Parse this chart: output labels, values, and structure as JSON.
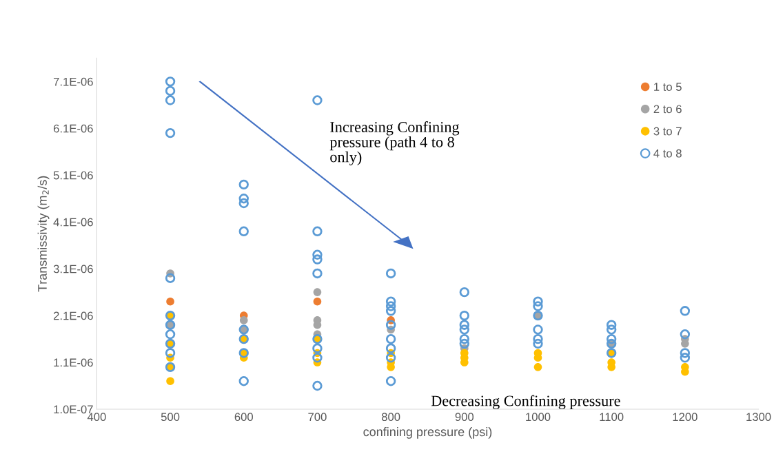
{
  "chart_data": {
    "type": "scatter",
    "xlabel": "confining pressure (psi)",
    "ylabel": "Transmissivity (m$_{2}$/s)",
    "marker": "circle",
    "legend": "top right",
    "grid": false,
    "xlim": [
      400,
      1300
    ],
    "xticks": [
      400,
      500,
      600,
      700,
      800,
      900,
      1000,
      1100,
      1200,
      1300
    ],
    "ylim": [
      1e-07,
      7.6e-06
    ],
    "yticks": [
      {
        "value": 1e-07,
        "label": "1.0E-07"
      },
      {
        "value": 1.1e-06,
        "label": "1.1E-06"
      },
      {
        "value": 2.1e-06,
        "label": "2.1E-06"
      },
      {
        "value": 3.1e-06,
        "label": "3.1E-06"
      },
      {
        "value": 4.1e-06,
        "label": "4.1E-06"
      },
      {
        "value": 5.1e-06,
        "label": "5.1E-06"
      },
      {
        "value": 6.1e-06,
        "label": "6.1E-06"
      },
      {
        "value": 7.1e-06,
        "label": "7.1E-06"
      }
    ],
    "series": [
      {
        "name": "1 to 5",
        "color": "#ed7d31",
        "x": [
          500,
          600,
          700,
          800
        ],
        "values": [
          2.4e-06,
          2.1e-06,
          2.4e-06,
          2e-06
        ]
      },
      {
        "name": "2 to 6",
        "color": "#a5a5a5",
        "x": [
          500,
          500,
          600,
          600,
          700,
          700,
          700,
          700,
          800,
          900,
          1000,
          1100,
          1200,
          1200
        ],
        "values": [
          3e-06,
          1.9e-06,
          2e-06,
          1.8e-06,
          2.6e-06,
          2e-06,
          1.9e-06,
          1.7e-06,
          1.8e-06,
          1.4e-06,
          2.1e-06,
          1.5e-06,
          1.6e-06,
          1.5e-06
        ]
      },
      {
        "name": "3 to 7",
        "color": "#ffc000",
        "x": [
          500,
          500,
          500,
          500,
          500,
          600,
          600,
          600,
          700,
          700,
          700,
          800,
          800,
          800,
          900,
          900,
          900,
          1000,
          1000,
          1000,
          1100,
          1100,
          1100,
          1200,
          1200
        ],
        "values": [
          7e-07,
          1e-06,
          1.2e-06,
          1.5e-06,
          2.1e-06,
          1.6e-06,
          1.3e-06,
          1.2e-06,
          1.1e-06,
          1.3e-06,
          1.6e-06,
          1e-06,
          1.1e-06,
          1.3e-06,
          1.3e-06,
          1.2e-06,
          1.1e-06,
          1.3e-06,
          1.2e-06,
          1e-06,
          1.3e-06,
          1.1e-06,
          1e-06,
          1e-06,
          9e-07
        ]
      },
      {
        "name": "4 to 8",
        "color": "#5b9bd5",
        "x": [
          500,
          500,
          500,
          500,
          500,
          500,
          500,
          500,
          500,
          500,
          500,
          600,
          600,
          600,
          600,
          600,
          600,
          600,
          600,
          700,
          700,
          700,
          700,
          700,
          700,
          700,
          700,
          700,
          800,
          800,
          800,
          800,
          800,
          800,
          800,
          800,
          800,
          900,
          900,
          900,
          900,
          900,
          900,
          1000,
          1000,
          1000,
          1000,
          1000,
          1000,
          1100,
          1100,
          1100,
          1100,
          1100,
          1200,
          1200,
          1200,
          1200
        ],
        "values": [
          7.1e-06,
          6.9e-06,
          6.7e-06,
          6e-06,
          2.9e-06,
          2.1e-06,
          1.9e-06,
          1.7e-06,
          1.5e-06,
          1.3e-06,
          1e-06,
          4.9e-06,
          4.6e-06,
          4.5e-06,
          3.9e-06,
          7e-07,
          1.8e-06,
          1.6e-06,
          1.3e-06,
          6.7e-06,
          3.9e-06,
          3.4e-06,
          3.3e-06,
          3e-06,
          6e-07,
          1.6e-06,
          1.4e-06,
          1.2e-06,
          3e-06,
          2.4e-06,
          2.3e-06,
          2.2e-06,
          1.9e-06,
          1.6e-06,
          1.4e-06,
          1.2e-06,
          7e-07,
          2.6e-06,
          2.1e-06,
          1.9e-06,
          1.8e-06,
          1.6e-06,
          1.5e-06,
          2.4e-06,
          2.3e-06,
          2.1e-06,
          1.8e-06,
          1.6e-06,
          1.5e-06,
          1.9e-06,
          1.8e-06,
          1.6e-06,
          1.5e-06,
          1.3e-06,
          2.2e-06,
          1.7e-06,
          1.3e-06,
          1.2e-06
        ]
      }
    ],
    "annotations": [
      "Increasing Confining\npressure (path 4 to 8\nonly)",
      "Decreasing Confining pressure"
    ]
  }
}
